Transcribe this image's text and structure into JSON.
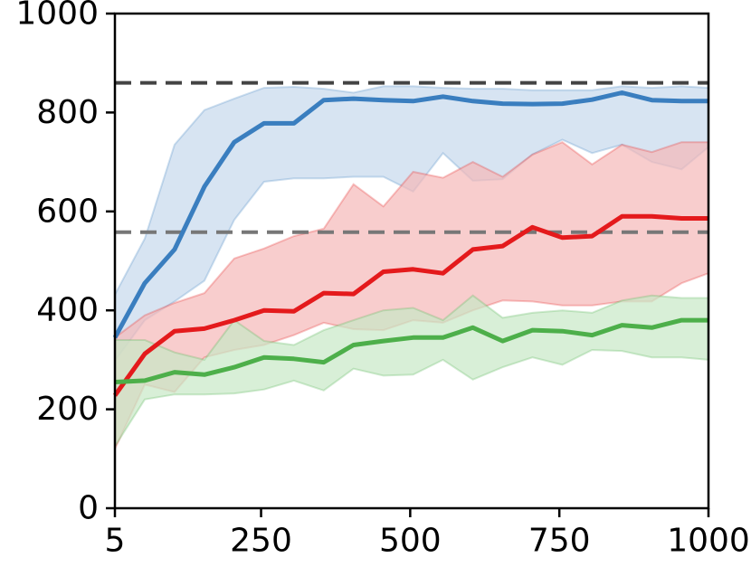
{
  "chart_data": {
    "type": "line",
    "title": "",
    "xlabel": "",
    "ylabel": "",
    "xlim": [
      5,
      1000
    ],
    "ylim": [
      0,
      1000
    ],
    "xticks": [
      5,
      250,
      500,
      750,
      1000
    ],
    "xtick_labels": [
      "5",
      "250",
      "500",
      "750",
      "1000"
    ],
    "yticks": [
      0,
      200,
      400,
      600,
      800,
      1000
    ],
    "ytick_labels": [
      "0",
      "200",
      "400",
      "600",
      "800",
      "1000"
    ],
    "grid": false,
    "legend": "none",
    "x": [
      5,
      55,
      105,
      155,
      205,
      255,
      305,
      355,
      405,
      455,
      505,
      555,
      605,
      655,
      705,
      755,
      805,
      855,
      905,
      955,
      1000
    ],
    "series": [
      {
        "color": "#3a7ebf",
        "band_color": "#c6d9ec",
        "values": [
          345,
          455,
          523,
          650,
          740,
          778,
          778,
          825,
          828,
          825,
          823,
          832,
          823,
          818,
          817,
          818,
          826,
          840,
          825,
          823,
          823
        ],
        "upper": [
          432,
          545,
          735,
          805,
          828,
          850,
          852,
          848,
          840,
          853,
          853,
          850,
          848,
          848,
          845,
          845,
          845,
          853,
          850,
          853,
          850
        ],
        "lower": [
          298,
          380,
          418,
          460,
          583,
          660,
          667,
          667,
          670,
          670,
          640,
          718,
          662,
          665,
          715,
          745,
          718,
          735,
          700,
          685,
          730
        ]
      },
      {
        "color": "#e41a1c",
        "band_color": "#f5b8b8",
        "values": [
          228,
          312,
          358,
          363,
          380,
          400,
          398,
          435,
          433,
          478,
          483,
          475,
          523,
          530,
          568,
          547,
          550,
          590,
          590,
          586,
          586
        ],
        "upper": [
          345,
          390,
          415,
          435,
          505,
          525,
          550,
          565,
          655,
          610,
          680,
          668,
          700,
          670,
          715,
          740,
          695,
          735,
          720,
          740,
          740
        ],
        "lower": [
          120,
          250,
          235,
          305,
          320,
          330,
          350,
          375,
          362,
          360,
          380,
          375,
          400,
          420,
          418,
          410,
          410,
          418,
          418,
          455,
          475
        ]
      },
      {
        "color": "#4daf4a",
        "band_color": "#c8e8c6",
        "values": [
          255,
          258,
          275,
          270,
          285,
          305,
          302,
          295,
          330,
          338,
          345,
          345,
          365,
          338,
          360,
          358,
          350,
          370,
          365,
          380,
          380
        ],
        "upper": [
          340,
          340,
          315,
          300,
          380,
          338,
          330,
          360,
          380,
          400,
          405,
          380,
          430,
          385,
          395,
          400,
          395,
          420,
          430,
          425,
          425
        ],
        "lower": [
          125,
          220,
          230,
          230,
          232,
          240,
          258,
          238,
          282,
          268,
          270,
          300,
          260,
          285,
          305,
          290,
          320,
          318,
          305,
          305,
          300
        ]
      }
    ],
    "reference_lines": [
      {
        "y": 860,
        "color": "#444444"
      },
      {
        "y": 558,
        "color": "#777777"
      }
    ]
  }
}
